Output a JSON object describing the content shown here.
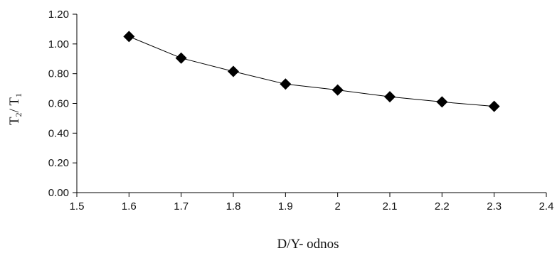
{
  "chart_data": {
    "type": "line",
    "title": "",
    "xlabel": "D/Y- odnos",
    "ylabel": {
      "T": "T",
      "sub2": "2",
      "sep": "/ T",
      "sub1": "1"
    },
    "xlim": [
      1.5,
      2.4
    ],
    "ylim": [
      0.0,
      1.2
    ],
    "x_ticks": [
      1.5,
      1.6,
      1.7,
      1.8,
      1.9,
      2.0,
      2.1,
      2.2,
      2.3,
      2.4
    ],
    "x_tick_labels": [
      "1.5",
      "1.6",
      "1.7",
      "1.8",
      "1.9",
      "2",
      "2.1",
      "2.2",
      "2.3",
      "2.4"
    ],
    "y_ticks": [
      0.0,
      0.2,
      0.4,
      0.6,
      0.8,
      1.0,
      1.2
    ],
    "y_tick_labels": [
      "0.00",
      "0.20",
      "0.40",
      "0.60",
      "0.80",
      "1.00",
      "1.20"
    ],
    "grid": false,
    "legend": "none",
    "marker": "diamond",
    "color": "#000000",
    "series": [
      {
        "x": [
          1.6,
          1.7,
          1.8,
          1.9,
          2.0,
          2.1,
          2.2,
          2.3
        ],
        "y": [
          1.05,
          0.905,
          0.815,
          0.73,
          0.69,
          0.645,
          0.61,
          0.58
        ]
      }
    ]
  }
}
